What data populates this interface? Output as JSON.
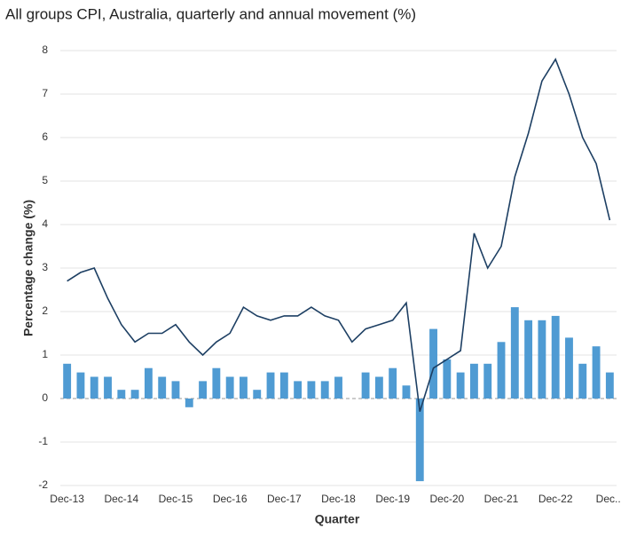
{
  "chart_data": {
    "type": "bar_line",
    "title": "All groups CPI, Australia, quarterly and annual movement (%)",
    "x_label": "Quarter",
    "y_label": "Percentage change (%)",
    "categories": [
      "Dec-13",
      null,
      null,
      null,
      "Dec-14",
      null,
      null,
      null,
      "Dec-15",
      null,
      null,
      null,
      "Dec-16",
      null,
      null,
      null,
      "Dec-17",
      null,
      null,
      null,
      "Dec-18",
      null,
      null,
      null,
      "Dec-19",
      null,
      null,
      null,
      "Dec-20",
      null,
      null,
      null,
      "Dec-21",
      null,
      null,
      null,
      "Dec-22",
      null,
      null,
      null,
      "Dec..."
    ],
    "series": [
      {
        "kind": "bar",
        "color": "#4f9bd3",
        "values": [
          0.8,
          0.6,
          0.5,
          0.5,
          0.2,
          0.2,
          0.7,
          0.5,
          0.4,
          -0.2,
          0.4,
          0.7,
          0.5,
          0.5,
          0.2,
          0.6,
          0.6,
          0.4,
          0.4,
          0.4,
          0.5,
          0.0,
          0.6,
          0.5,
          0.7,
          0.3,
          -1.9,
          1.6,
          0.9,
          0.6,
          0.8,
          0.8,
          1.3,
          2.1,
          1.8,
          1.8,
          1.9,
          1.4,
          0.8,
          1.2,
          0.6
        ]
      },
      {
        "kind": "line",
        "color": "#1d3f63",
        "values": [
          2.7,
          2.9,
          3.0,
          2.3,
          1.7,
          1.3,
          1.5,
          1.5,
          1.7,
          1.3,
          1.0,
          1.3,
          1.5,
          2.1,
          1.9,
          1.8,
          1.9,
          1.9,
          2.1,
          1.9,
          1.8,
          1.3,
          1.6,
          1.7,
          1.8,
          2.2,
          -0.3,
          0.7,
          0.9,
          1.1,
          3.8,
          3.0,
          3.5,
          5.1,
          6.1,
          7.3,
          7.8,
          7.0,
          6.0,
          5.4,
          4.1
        ]
      }
    ],
    "ylim": [
      -2,
      8
    ],
    "yticks": [
      -2,
      -1,
      0,
      1,
      2,
      3,
      4,
      5,
      6,
      7,
      8
    ],
    "grid": true
  }
}
